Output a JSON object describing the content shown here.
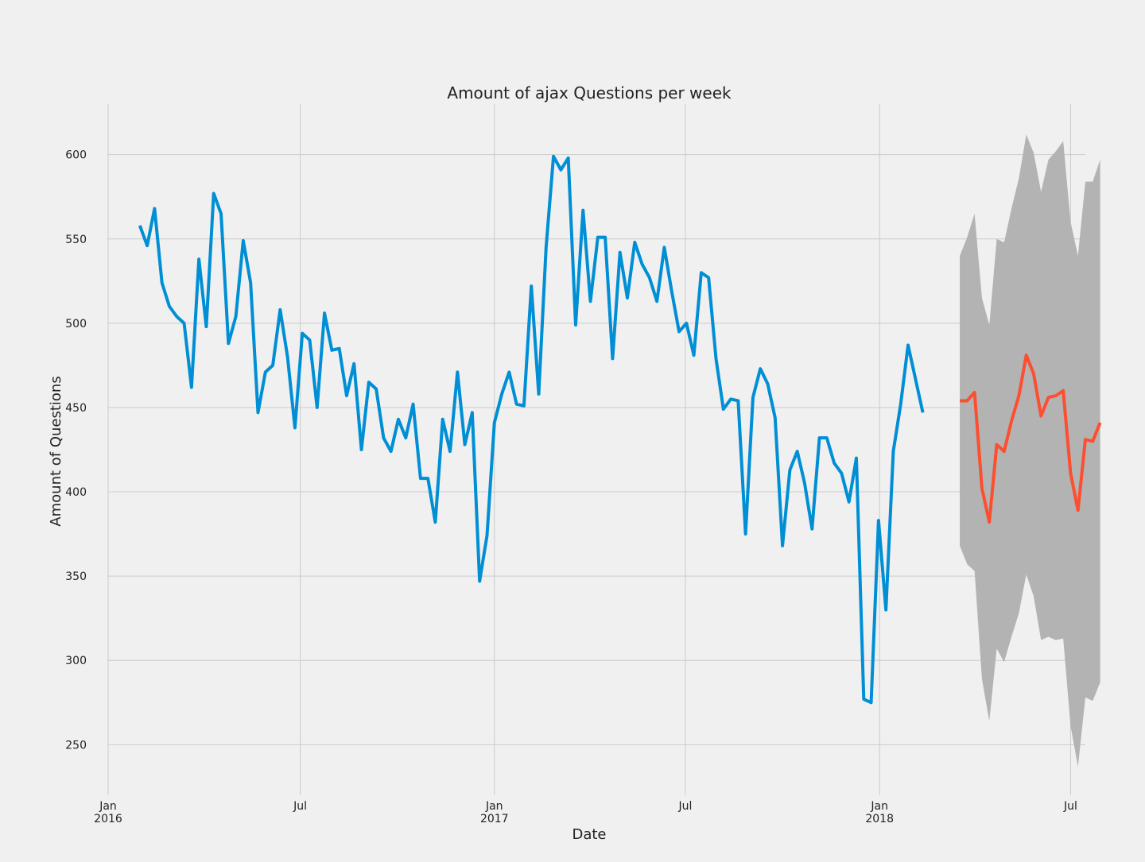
{
  "chart_data": {
    "type": "line",
    "title": "Amount of ajax Questions per week",
    "xlabel": "Date",
    "ylabel": "Amount of Questions",
    "xlim": [
      "2016-01-01",
      "2018-07-15"
    ],
    "ylim": [
      220,
      630
    ],
    "grid": true,
    "x_ticks": [
      {
        "date": "2016-01-01",
        "label": "Jan",
        "sublabel": "2016"
      },
      {
        "date": "2016-07-01",
        "label": "Jul",
        "sublabel": ""
      },
      {
        "date": "2017-01-01",
        "label": "Jan",
        "sublabel": "2017"
      },
      {
        "date": "2017-07-01",
        "label": "Jul",
        "sublabel": ""
      },
      {
        "date": "2018-01-01",
        "label": "Jan",
        "sublabel": "2018"
      },
      {
        "date": "2018-07-01",
        "label": "Jul",
        "sublabel": ""
      }
    ],
    "y_ticks": [
      250,
      300,
      350,
      400,
      450,
      500,
      550,
      600
    ],
    "colors": {
      "observed": "#008fd5",
      "forecast": "#fc4f30",
      "interval": "#b3b3b3",
      "grid": "#cbcbcb",
      "background": "#f0f0f0"
    },
    "observed": {
      "start": "2016-01-31",
      "step_days": 7,
      "values": [
        558,
        546,
        568,
        524,
        510,
        504,
        500,
        462,
        538,
        498,
        577,
        565,
        488,
        504,
        549,
        524,
        447,
        471,
        475,
        508,
        480,
        438,
        494,
        490,
        450,
        506,
        484,
        485,
        457,
        476,
        425,
        465,
        461,
        432,
        424,
        443,
        432,
        452,
        408,
        408,
        382,
        443,
        424,
        471,
        428,
        447,
        347,
        374,
        441,
        458,
        471,
        452,
        451,
        522,
        458,
        545,
        599,
        591,
        598,
        499,
        567,
        513,
        551,
        551,
        479,
        542,
        515,
        548,
        535,
        527,
        513,
        545,
        519,
        495,
        500,
        481,
        530,
        527,
        479,
        449,
        455,
        454,
        375,
        456,
        473,
        464,
        444,
        368,
        413,
        424,
        405,
        378,
        432,
        432,
        417,
        411,
        394,
        420,
        277,
        275,
        383,
        330,
        424,
        452,
        487,
        467,
        447
      ]
    },
    "forecast": {
      "start": "2018-03-18",
      "step_days": 7,
      "values": [
        454,
        454,
        459,
        402,
        382,
        428,
        424,
        442,
        457,
        481,
        470,
        445,
        456,
        457,
        460,
        411,
        389,
        431,
        430,
        441
      ],
      "lower": [
        368,
        357,
        353,
        289,
        264,
        307,
        299,
        314,
        328,
        351,
        338,
        312,
        314,
        312,
        313,
        261,
        237,
        278,
        276,
        287
      ],
      "upper": [
        540,
        551,
        565,
        515,
        499,
        550,
        548,
        568,
        586,
        612,
        601,
        578,
        597,
        602,
        608,
        560,
        540,
        584,
        584,
        597
      ]
    }
  }
}
